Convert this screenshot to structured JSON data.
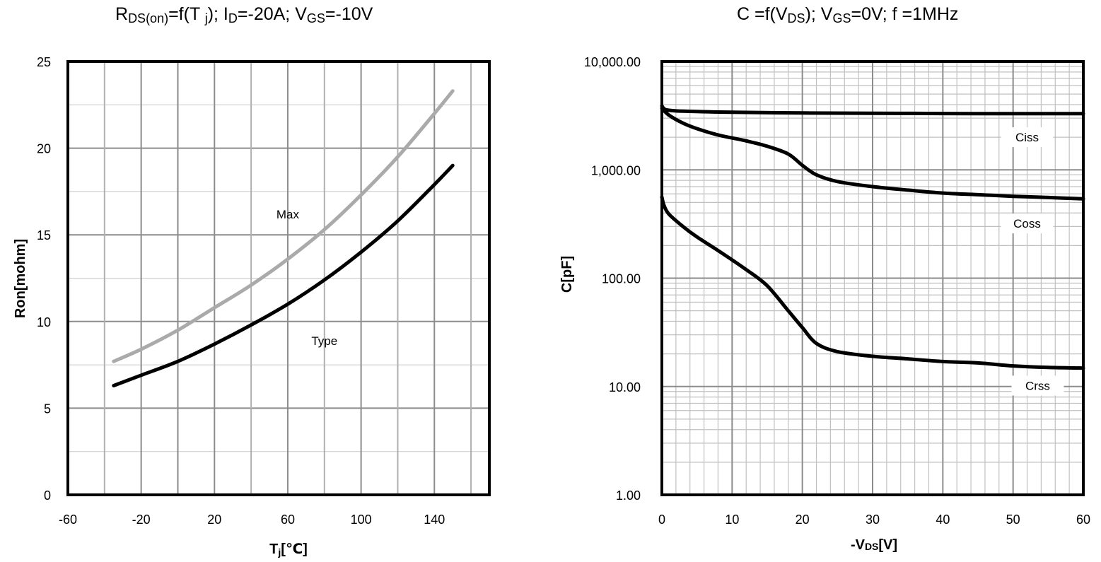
{
  "chart_data": [
    {
      "type": "line",
      "title_parts": {
        "r": "R",
        "r_sub": "DS(on)",
        "mid": "=f(T ",
        "t_sub": "j",
        "mid2": ");  I",
        "i_sub": "D",
        "mid3": "=-20A;  V",
        "v_sub": "GS",
        "end": "=-10V"
      },
      "xlabel_main": "T",
      "xlabel_sub": "j",
      "xlabel_end": "[℃]",
      "ylabel": "Ron[mohm]",
      "xlim": [
        -60,
        170
      ],
      "ylim": [
        0,
        25
      ],
      "x_ticks": [
        -60,
        -20,
        20,
        60,
        100,
        140
      ],
      "x_tick_labels": [
        "-60",
        "-20",
        "20",
        "60",
        "100",
        "140"
      ],
      "y_ticks": [
        0,
        5,
        10,
        15,
        20,
        25
      ],
      "y_tick_labels": [
        "0",
        "5",
        "10",
        "15",
        "20",
        "25"
      ],
      "grid": true,
      "series": [
        {
          "name": "Max",
          "color": "#aaaaaa",
          "x": [
            -35,
            -20,
            0,
            20,
            40,
            60,
            80,
            100,
            120,
            140,
            150
          ],
          "y": [
            7.7,
            8.4,
            9.5,
            10.8,
            12.1,
            13.6,
            15.3,
            17.3,
            19.5,
            22.0,
            23.3
          ]
        },
        {
          "name": "Type",
          "color": "#000000",
          "x": [
            -35,
            -20,
            0,
            20,
            40,
            60,
            80,
            100,
            120,
            140,
            150
          ],
          "y": [
            6.3,
            6.9,
            7.7,
            8.7,
            9.8,
            11.0,
            12.4,
            14.0,
            15.8,
            17.9,
            19.0
          ]
        }
      ],
      "annotations": [
        {
          "text": "Max",
          "x": 60,
          "y": 16.2
        },
        {
          "text": "Type",
          "x": 80,
          "y": 8.9
        }
      ]
    },
    {
      "type": "line",
      "scale_y": "log",
      "title_parts": {
        "c": "C =f(V",
        "ds_sub": "DS",
        "mid": ");  V",
        "gs_sub": "GS",
        "end": "=0V;  f =1MHz"
      },
      "xlabel_main": "-V",
      "xlabel_sub": "DS",
      "xlabel_end": "[V]",
      "ylabel": "C[pF]",
      "xlim": [
        0,
        60
      ],
      "ylim": [
        1,
        10000
      ],
      "x_ticks": [
        0,
        10,
        20,
        30,
        40,
        50,
        60
      ],
      "x_tick_labels": [
        "0",
        "10",
        "20",
        "30",
        "40",
        "50",
        "60"
      ],
      "y_ticks": [
        1,
        10,
        100,
        1000,
        10000
      ],
      "y_tick_labels": [
        "1.00",
        "10.00",
        "100.00",
        "1,000.00",
        "10,000.00"
      ],
      "grid": true,
      "series": [
        {
          "name": "Ciss",
          "color": "#000000",
          "x": [
            0,
            0.5,
            2,
            5,
            10,
            20,
            30,
            40,
            50,
            60
          ],
          "y": [
            3900,
            3600,
            3500,
            3450,
            3400,
            3350,
            3330,
            3310,
            3300,
            3300
          ]
        },
        {
          "name": "Coss",
          "color": "#000000",
          "x": [
            0,
            1,
            3,
            5,
            8,
            12,
            15,
            18,
            20,
            22,
            25,
            30,
            35,
            40,
            45,
            50,
            55,
            60
          ],
          "y": [
            3700,
            3200,
            2700,
            2400,
            2100,
            1850,
            1650,
            1400,
            1100,
            900,
            780,
            700,
            650,
            610,
            590,
            570,
            555,
            540
          ]
        },
        {
          "name": "Crss",
          "color": "#000000",
          "x": [
            0,
            0.3,
            1,
            3,
            5,
            8,
            12,
            15,
            18,
            20,
            22,
            25,
            30,
            35,
            40,
            45,
            50,
            55,
            60
          ],
          "y": [
            560,
            470,
            390,
            300,
            240,
            180,
            120,
            85,
            50,
            35,
            25,
            21,
            19,
            18,
            17,
            16.5,
            15.5,
            15,
            14.8
          ]
        }
      ],
      "annotations": [
        {
          "text": "Ciss",
          "x": 52,
          "y": 2000
        },
        {
          "text": "Coss",
          "x": 52,
          "y": 320
        },
        {
          "text": "Crss",
          "x": 53.5,
          "y": 10.2
        }
      ]
    }
  ]
}
